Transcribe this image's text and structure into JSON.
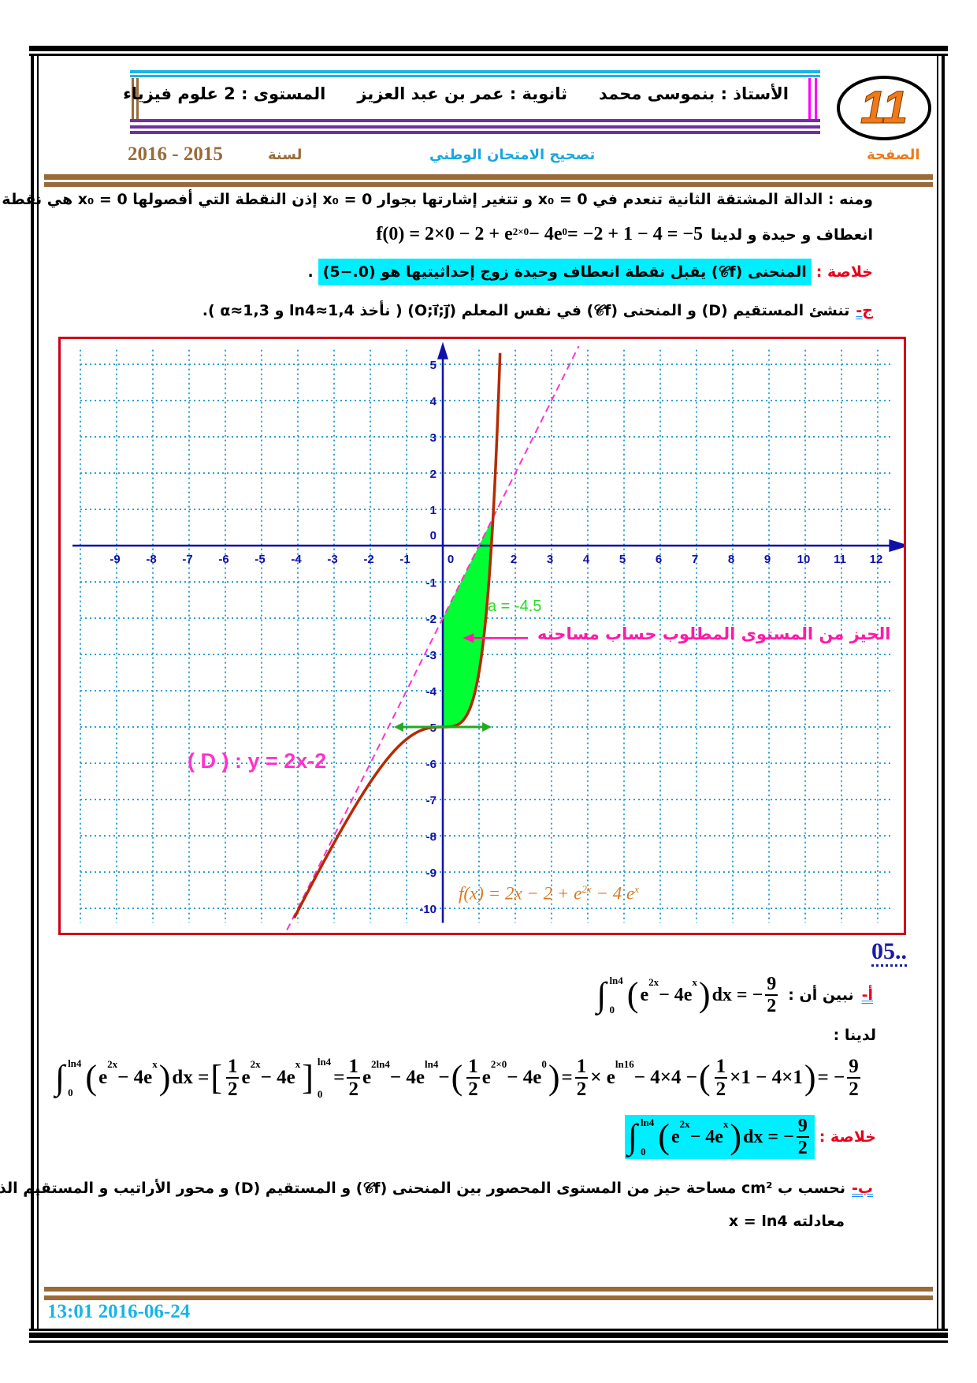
{
  "header": {
    "page_number": "11",
    "teacher": "الأستاذ : بنموسى محمد",
    "school": "ثانوية : عمر بن عبد العزيز",
    "level": "المستوى : 2 علوم فيزياء",
    "page_label": "الصفحة",
    "title": "تصحيح الامتحان الوطني",
    "year_label": "لسنة",
    "year": "2016 - 2015"
  },
  "colors": {
    "brown": "#9a6a38",
    "cyan_highlight": "#00eeff",
    "red": "#e8001c",
    "frame": "#000000",
    "header_blue": "#18b4ea",
    "header_purple": "#7030a0",
    "header_magenta": "#ff00ff"
  },
  "section_c": {
    "line1": "ومنه : الدالة المشتقة الثانية تنعدم في x₀ = 0 و تتغير إشارتها بجوار x₀ = 0 إذن النقطة التي أفصولها x₀ = 0 هي نقطة",
    "line2_text": "انعطاف و حيدة و لدينا",
    "line2_formula": [
      "f(0) = 2×0 − 2 + e",
      {
        "sup": "2×0"
      },
      " − 4e",
      {
        "sup": "0"
      },
      " = −2 + 1 − 4 = −5"
    ],
    "summary_label": "خلاصة :",
    "summary_text": "المنحنى (𝒞f) يقبل نقطة انعطاف وحيدة زوج إحداثيتيها هو (0.−5)",
    "summary_end": ".",
    "item_label": "ج-",
    "item_text": "تنشئ المستقيم (D) و المنحنى (𝒞f) في نفس المعلم (O;i⃗;j⃗) ( نأخذ ln4≈1,4 و α≈1,3 )."
  },
  "graph": {
    "x_ticks": [
      "-9",
      "-8",
      "-7",
      "-6",
      "-5",
      "-4",
      "-3",
      "-2",
      "-1",
      "0",
      "2",
      "3",
      "4",
      "5",
      "6",
      "7",
      "8",
      "9",
      "10",
      "11",
      "12"
    ],
    "y_ticks": [
      "5",
      "4",
      "3",
      "2",
      "1",
      "0",
      "-1",
      "-2",
      "-3",
      "-4",
      "-5",
      "-6",
      "-7",
      "-8",
      "-9",
      "-10"
    ],
    "curve_label": "f(x) = 2x − 2 + e^{2x} − 4e^x",
    "curve_label_parts": {
      "a": "f(x) = 2x − 2 + e",
      "b": "2x",
      "c": " − 4 e",
      "d": "x"
    },
    "line_label": "( D ) : y = 2x-2",
    "area_label": "a = -4.5",
    "region_annotation": "الحيز من المستوى المطلوب حساب مساحته",
    "curve_color": "#b52a00",
    "line_color": "#ff33cc",
    "fill_color": "#00ff33",
    "grid_color": "#2aa0d4",
    "axis_color": "#1010a8",
    "x_range": [
      -10,
      12.4
    ],
    "y_range": [
      -10.4,
      5.4
    ],
    "region_x": [
      0,
      1.386
    ]
  },
  "exercise5": {
    "number": "05..",
    "a_label": "أ-",
    "a_text": "نبين أن :",
    "a_formula": [
      {
        "int": [
          "0",
          "ln4"
        ]
      },
      {
        "big": "("
      },
      "e",
      {
        "sup": "2x"
      },
      " − 4e",
      {
        "sup": "x"
      },
      {
        "big": ")"
      },
      "dx = −",
      {
        "frac": [
          "9",
          "2"
        ]
      }
    ],
    "we_have": "لدينا :",
    "long_formula": [
      {
        "int": [
          "0",
          "ln4"
        ]
      },
      {
        "big": "("
      },
      "e",
      {
        "sup": "2x"
      },
      " − 4e",
      {
        "sup": "x"
      },
      {
        "big": ")"
      },
      "dx = ",
      {
        "big": "["
      },
      {
        "frac": [
          "1",
          "2"
        ]
      },
      "e",
      {
        "sup": "2x"
      },
      " − 4e",
      {
        "sup": "x"
      },
      {
        "big": "]"
      },
      {
        "lims": [
          "ln4",
          "0"
        ]
      },
      " = ",
      {
        "frac": [
          "1",
          "2"
        ]
      },
      "e",
      {
        "sup": "2ln4"
      },
      " − 4e",
      {
        "sup": "ln4"
      },
      " − ",
      {
        "big": "("
      },
      {
        "frac": [
          "1",
          "2"
        ]
      },
      "e",
      {
        "sup": "2×0"
      },
      " − 4e",
      {
        "sup": "0"
      },
      {
        "big": ")"
      },
      " = ",
      {
        "frac": [
          "1",
          "2"
        ]
      },
      "× e",
      {
        "sup": "ln16"
      },
      " − 4×4 − ",
      {
        "big": "("
      },
      {
        "frac": [
          "1",
          "2"
        ]
      },
      "×1 − 4×1",
      {
        "big": ")"
      },
      " = −",
      {
        "frac": [
          "9",
          "2"
        ]
      }
    ],
    "summary_label": "خلاصة :",
    "summary_formula": [
      {
        "int": [
          "0",
          "ln4"
        ]
      },
      {
        "big": "("
      },
      "e",
      {
        "sup": "2x"
      },
      " − 4e",
      {
        "sup": "x"
      },
      {
        "big": ")"
      },
      "dx = −",
      {
        "frac": [
          "9",
          "2"
        ]
      }
    ],
    "b_label": "ب-",
    "b_text": "نحسب ب cm² مساحة حيز من المستوى المحصور بين المنحنى (𝒞f) و المستقيم (D) و محور الأراتيب و المستقيم الذي",
    "b_text2": "معادلته x = ln4"
  },
  "footer": {
    "datetime": "13:01 2016-06-24"
  }
}
